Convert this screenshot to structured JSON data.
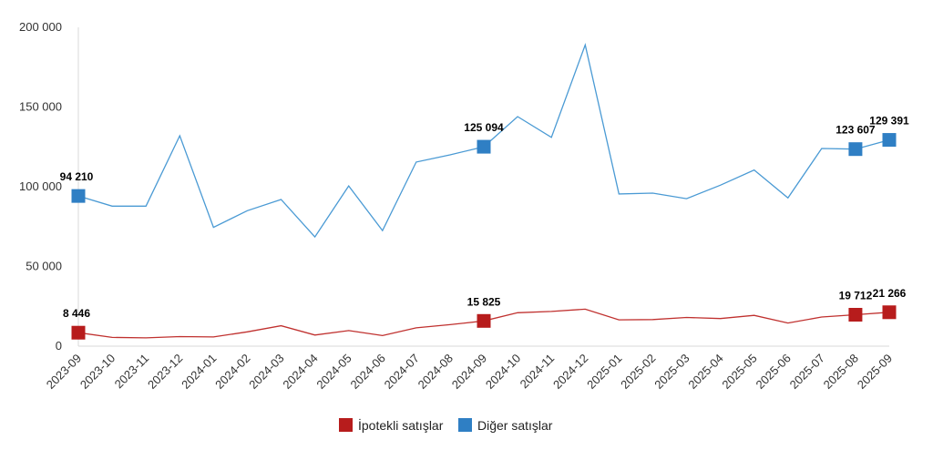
{
  "chart_data": {
    "type": "line",
    "title": "",
    "xlabel": "",
    "ylabel": "",
    "ylim": [
      0,
      200000
    ],
    "yticks": [
      0,
      50000,
      100000,
      150000,
      200000
    ],
    "ytick_labels": [
      "0",
      "50 000",
      "100 000",
      "150 000",
      "200 000"
    ],
    "grid": false,
    "legend_position": "bottom-center",
    "categories": [
      "2023-09",
      "2023-10",
      "2023-11",
      "2023-12",
      "2024-01",
      "2024-02",
      "2024-03",
      "2024-04",
      "2024-05",
      "2024-06",
      "2024-07",
      "2024-08",
      "2024-09",
      "2024-10",
      "2024-11",
      "2024-12",
      "2025-01",
      "2025-02",
      "2025-03",
      "2025-04",
      "2025-05",
      "2025-06",
      "2025-07",
      "2025-08",
      "2025-09"
    ],
    "series": [
      {
        "name": "Diğer satışlar",
        "color": "#4a9ad4",
        "marker_color": "#2f7fc4",
        "values": [
          94210,
          87800,
          87800,
          132000,
          74500,
          85000,
          92000,
          68500,
          100500,
          72500,
          115500,
          120000,
          125094,
          144000,
          131000,
          189000,
          95500,
          96000,
          92500,
          101000,
          110500,
          93000,
          124000,
          123607,
          129391
        ],
        "marked": [
          {
            "index": 0,
            "label": "94 210"
          },
          {
            "index": 12,
            "label": "125 094"
          },
          {
            "index": 23,
            "label": "123 607"
          },
          {
            "index": 24,
            "label": "129 391"
          }
        ]
      },
      {
        "name": "İpotekli satışlar",
        "color": "#c0312f",
        "marker_color": "#b71c1c",
        "values": [
          8446,
          5500,
          5200,
          6000,
          5800,
          9000,
          12800,
          7000,
          9800,
          6600,
          11500,
          13500,
          15825,
          21000,
          21800,
          23200,
          16500,
          16700,
          18000,
          17300,
          19300,
          14500,
          18300,
          19712,
          21266
        ],
        "marked": [
          {
            "index": 0,
            "label": "8 446"
          },
          {
            "index": 12,
            "label": "15 825"
          },
          {
            "index": 23,
            "label": "19 712"
          },
          {
            "index": 24,
            "label": "21 266"
          }
        ]
      }
    ],
    "legend": [
      {
        "name": "İpotekli satışlar",
        "color": "#b71c1c"
      },
      {
        "name": "Diğer satışlar",
        "color": "#2f7fc4"
      }
    ]
  }
}
